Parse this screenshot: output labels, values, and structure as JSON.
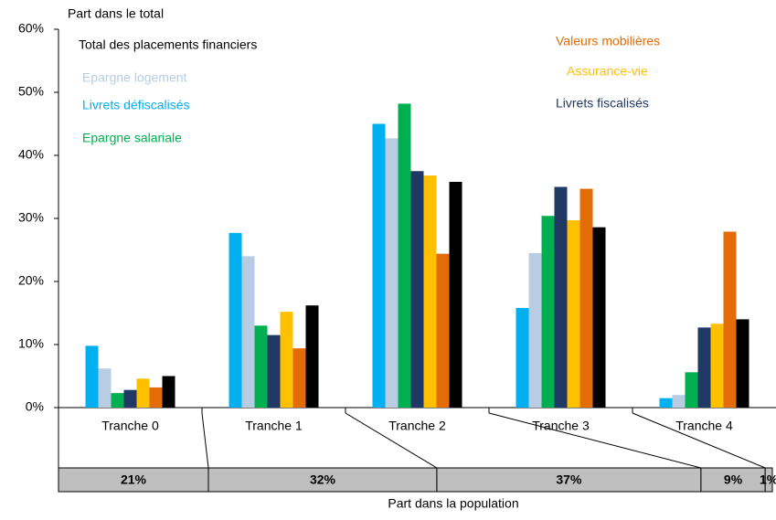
{
  "chart_data": {
    "type": "bar",
    "y_axis_label": "Part dans le total",
    "x_axis_label": "Part dans la population",
    "categories": [
      "Tranche 0",
      "Tranche 1",
      "Tranche 2",
      "Tranche 3",
      "Tranche 4"
    ],
    "series": [
      {
        "name": "Livrets défiscalisés",
        "color": "#00b0f0",
        "values": [
          9.8,
          27.7,
          45.0,
          15.8,
          1.5
        ]
      },
      {
        "name": "Epargne logement",
        "color": "#b8cce4",
        "values": [
          6.2,
          24.0,
          42.7,
          24.5,
          2.0
        ]
      },
      {
        "name": "Epargne salariale",
        "color": "#00b050",
        "values": [
          2.3,
          13.0,
          48.2,
          30.4,
          5.6
        ]
      },
      {
        "name": "Livrets fiscalisés",
        "color": "#1f3864",
        "values": [
          2.8,
          11.5,
          37.5,
          35.0,
          12.7
        ]
      },
      {
        "name": "Assurance-vie",
        "color": "#ffc000",
        "values": [
          4.6,
          15.2,
          36.8,
          29.7,
          13.3
        ]
      },
      {
        "name": "Valeurs mobilières",
        "color": "#e36c09",
        "values": [
          3.2,
          9.4,
          24.4,
          34.7,
          27.9
        ]
      },
      {
        "name": "Total des placements financiers",
        "color": "#000000",
        "values": [
          5.0,
          16.2,
          35.8,
          28.6,
          14.0
        ]
      }
    ],
    "ylim": [
      0,
      60
    ],
    "yticks": [
      {
        "value": 0,
        "label": "0%"
      },
      {
        "value": 10,
        "label": "10%"
      },
      {
        "value": 20,
        "label": "20%"
      },
      {
        "value": 30,
        "label": "30%"
      },
      {
        "value": 40,
        "label": "40%"
      },
      {
        "value": 50,
        "label": "50%"
      },
      {
        "value": 60,
        "label": "60%"
      }
    ],
    "population": {
      "values": [
        21,
        32,
        37,
        9,
        1
      ],
      "value_labels": [
        "21%",
        "32%",
        "37%",
        "9%",
        "1%"
      ],
      "color": "#bfbfbf"
    }
  }
}
